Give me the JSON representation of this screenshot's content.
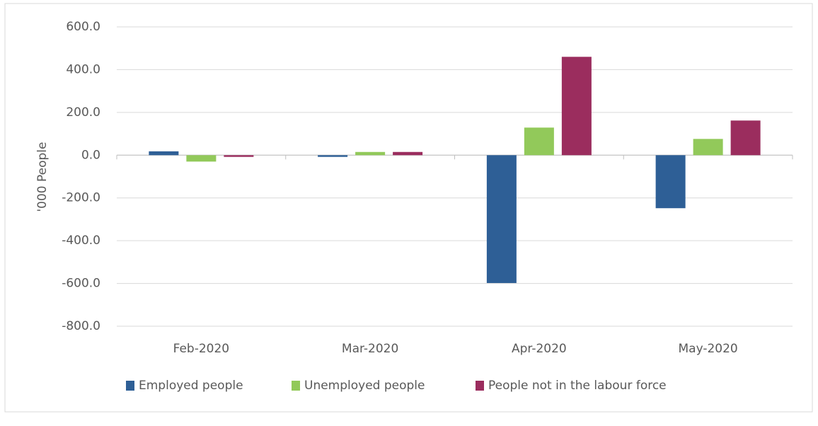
{
  "chart_data": {
    "type": "bar",
    "y_label": "'000 People",
    "categories": [
      "Feb-2020",
      "Mar-2020",
      "Apr-2020",
      "May-2020"
    ],
    "series": [
      {
        "name": "Employed people",
        "color": "#2e5f96",
        "values": [
          18,
          -8,
          -598,
          -248
        ]
      },
      {
        "name": "Unemployed people",
        "color": "#92c95a",
        "values": [
          -30,
          15,
          129,
          76
        ]
      },
      {
        "name": "People not in the labour force",
        "color": "#9b2d5e",
        "values": [
          -8,
          15,
          460,
          162
        ]
      }
    ],
    "ylim": [
      -800,
      600
    ],
    "yticks": [
      {
        "value": -800,
        "label": "-800.0"
      },
      {
        "value": -600,
        "label": "-600.0"
      },
      {
        "value": -400,
        "label": "-400.0"
      },
      {
        "value": -200,
        "label": "-200.0"
      },
      {
        "value": 0,
        "label": "0.0"
      },
      {
        "value": 200,
        "label": "200.0"
      },
      {
        "value": 400,
        "label": "400.0"
      },
      {
        "value": 600,
        "label": "600.0"
      }
    ],
    "grid": true
  }
}
